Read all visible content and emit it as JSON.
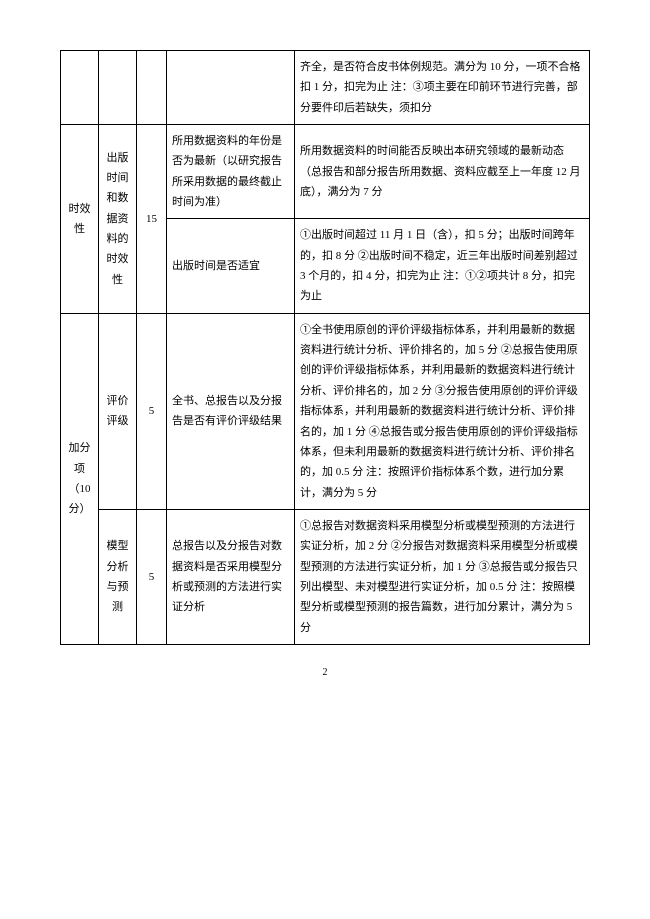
{
  "rows": [
    {
      "col1": "",
      "col2": "",
      "col3": "",
      "col4": "",
      "col5": "齐全，是否符合皮书体例规范。满分为 10 分，一项不合格扣 1 分，扣完为止 注：③项主要在印前环节进行完善，部分要件印后若缺失，须扣分"
    },
    {
      "col1": "时效性",
      "col2": "出版时间和数据资料的时效性",
      "col3": "15",
      "col4a": "所用数据资料的年份是否为最新（以研究报告所采用数据的最终截止时间为准）",
      "col5a": "所用数据资料的时间能否反映出本研究领域的最新动态（总报告和部分报告所用数据、资料应截至上一年度 12 月底），满分为 7 分",
      "col4b": "出版时间是否适宜",
      "col5b": "①出版时间超过 11 月 1 日（含），扣 5 分；出版时间跨年的，扣 8 分 ②出版时间不稳定，近三年出版时间差别超过 3 个月的，扣 4 分，扣完为止 注：①②项共计 8 分，扣完为止"
    },
    {
      "col1": "加分项（10分）",
      "col2a": "评价评级",
      "col3a": "5",
      "col4a": "全书、总报告以及分报告是否有评价评级结果",
      "col5a": "①全书使用原创的评价评级指标体系，并利用最新的数据资料进行统计分析、评价排名的，加 5 分 ②总报告使用原创的评价评级指标体系，并利用最新的数据资料进行统计分析、评价排名的，加 2 分 ③分报告使用原创的评价评级指标体系，并利用最新的数据资料进行统计分析、评价排名的，加 1 分 ④总报告或分报告使用原创的评价评级指标体系，但未利用最新的数据资料进行统计分析、评价排名的，加 0.5 分 注：按照评价指标体系个数，进行加分累计，满分为 5 分",
      "col2b": "模型分析与预测",
      "col3b": "5",
      "col4b": "总报告以及分报告对数据资料是否采用模型分析或预测的方法进行实证分析",
      "col5b": "①总报告对数据资料采用模型分析或模型预测的方法进行实证分析，加 2 分 ②分报告对数据资料采用模型分析或模型预测的方法进行实证分析，加 1 分 ③总报告或分报告只列出模型、未对模型进行实证分析，加 0.5 分 注：按照模型分析或模型预测的报告篇数，进行加分累计，满分为 5 分"
    }
  ],
  "pageNumber": "2"
}
